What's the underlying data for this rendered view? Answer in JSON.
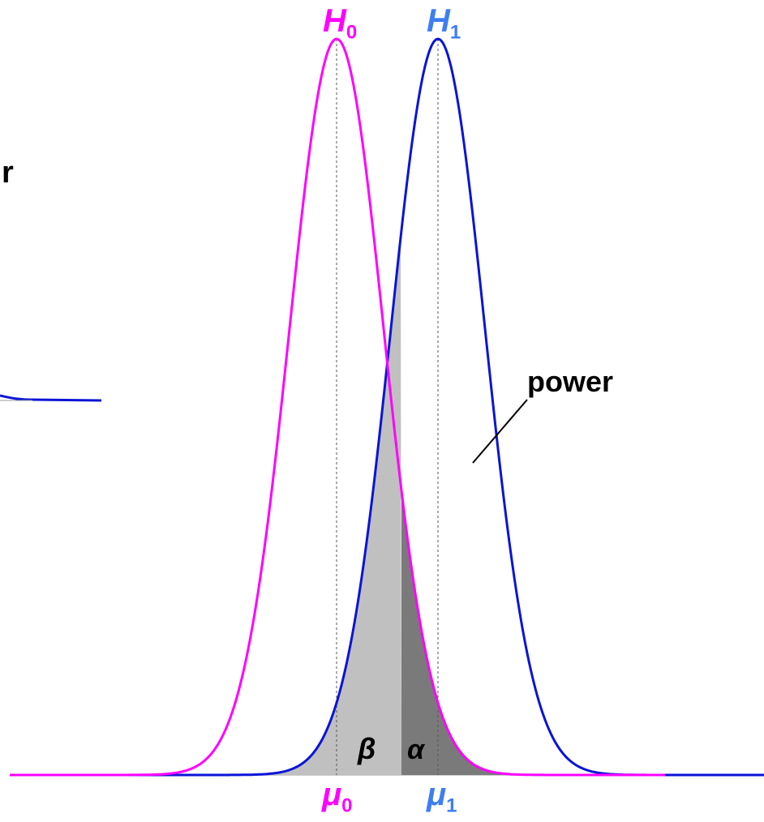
{
  "colors": {
    "h0": "#ff00ff",
    "h1": "#0a14d6",
    "h1_label": "#3e7ef0",
    "beta_fill": "#c0c0c0",
    "alpha_fill": "#7a7a7a",
    "text": "#000000"
  },
  "labels": {
    "h0": {
      "main": "H",
      "sub": "0"
    },
    "h1": {
      "main": "H",
      "sub": "1"
    },
    "mu0": {
      "main": "μ",
      "sub": "0"
    },
    "mu1": {
      "main": "μ",
      "sub": "1"
    },
    "beta": "β",
    "alpha": "α",
    "power": "power",
    "partial_left": "r"
  }
}
